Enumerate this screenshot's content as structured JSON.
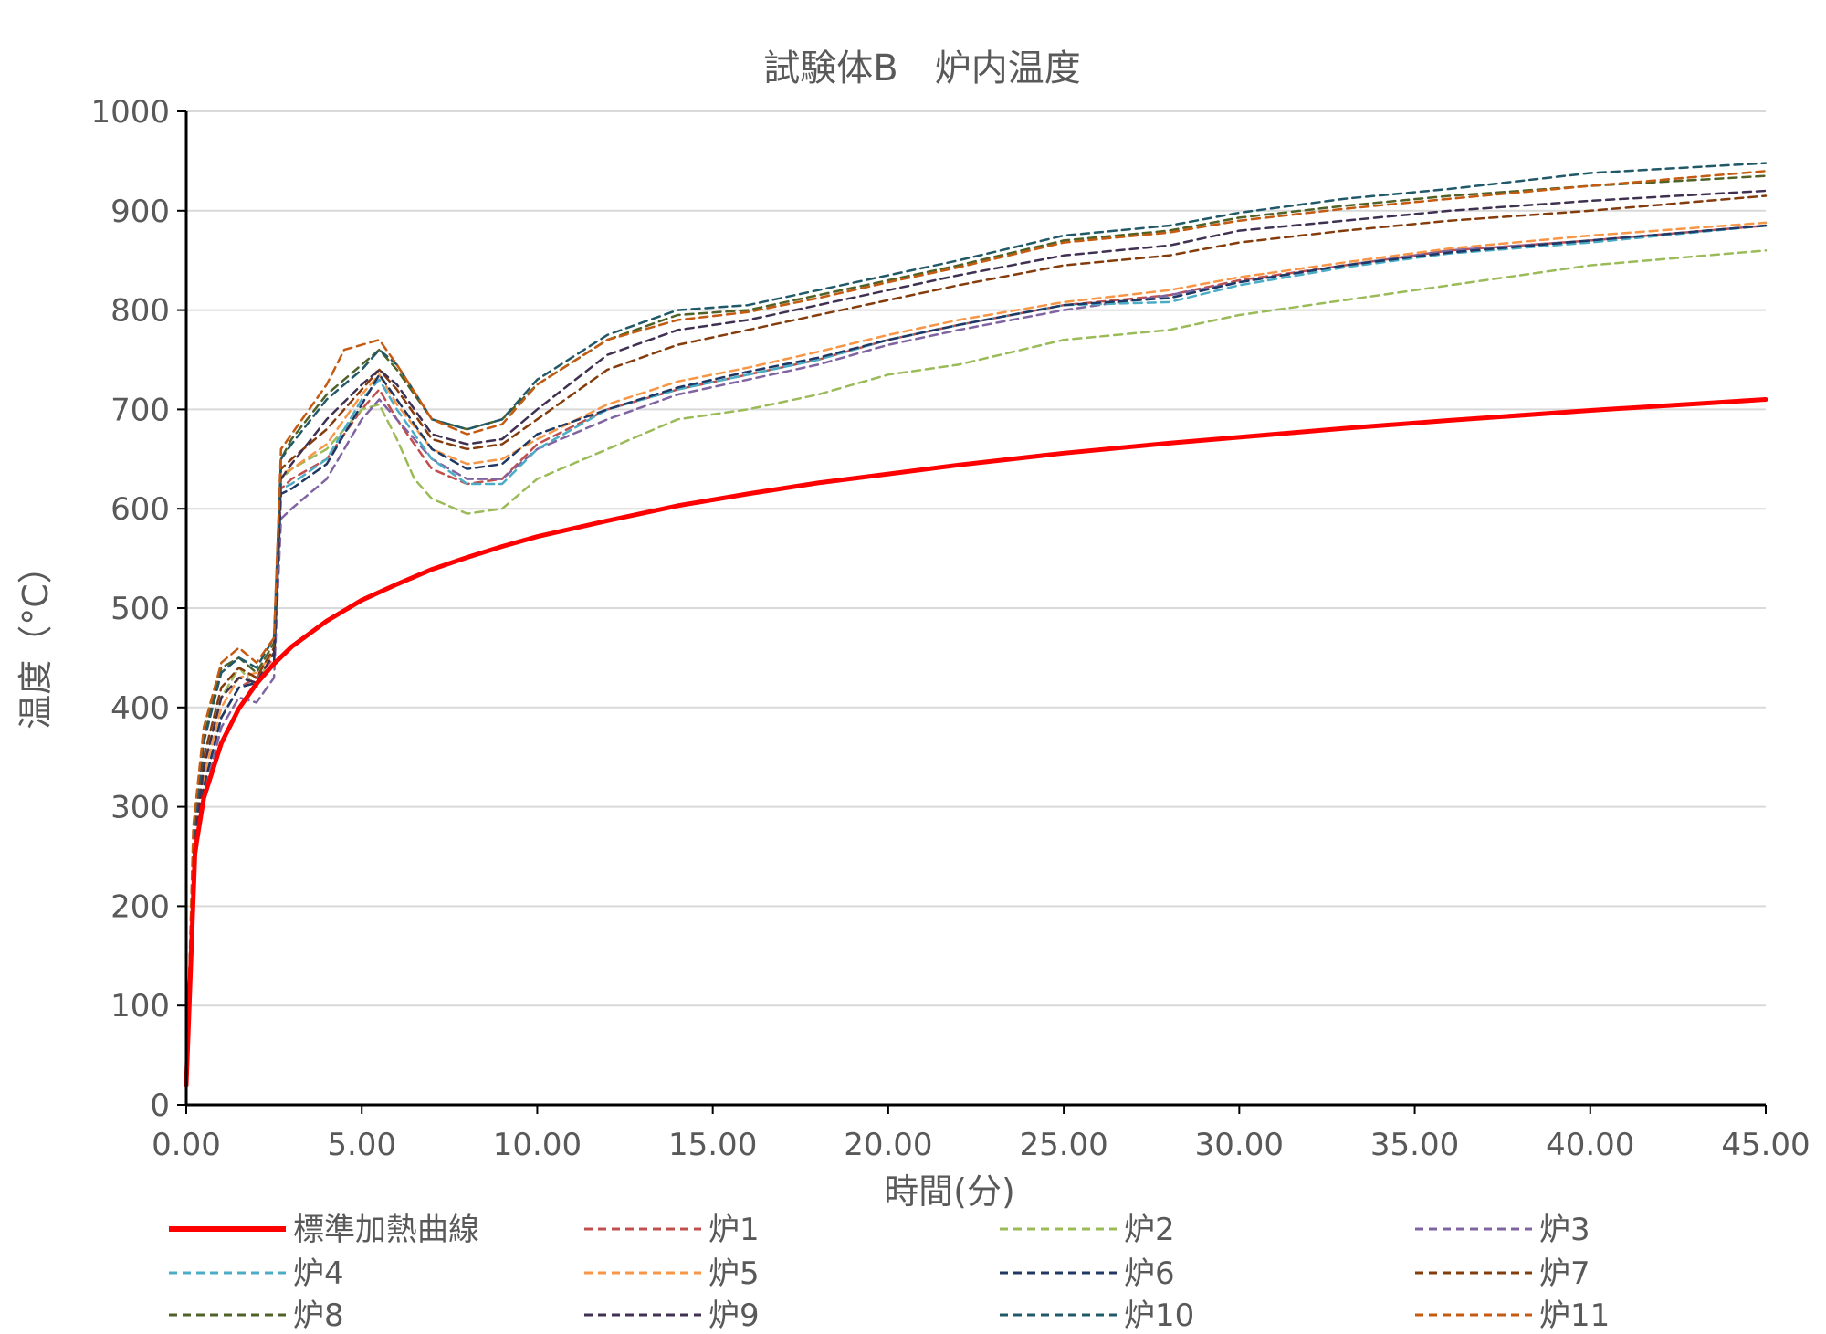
{
  "chart_data": {
    "type": "line",
    "title": "試験体B　炉内温度",
    "xlabel": "時間(分)",
    "ylabel": "温度（°C）",
    "xlim": [
      0,
      45
    ],
    "ylim": [
      0,
      1000
    ],
    "xticks": [
      "0.00",
      "5.00",
      "10.00",
      "15.00",
      "20.00",
      "25.00",
      "30.00",
      "35.00",
      "40.00",
      "45.00"
    ],
    "yticks": [
      "0",
      "100",
      "200",
      "300",
      "400",
      "500",
      "600",
      "700",
      "800",
      "900",
      "1000"
    ],
    "grid": "horizontal",
    "legend_position": "bottom",
    "series": [
      {
        "name": "標準加熱曲線",
        "color": "#ff0000",
        "style": "solid",
        "x": [
          0,
          0.25,
          0.5,
          1,
          1.5,
          2,
          2.5,
          3,
          4,
          5,
          6,
          7,
          8,
          9,
          10,
          12,
          14,
          16,
          18,
          20,
          22,
          25,
          28,
          30,
          33,
          36,
          40,
          45
        ],
        "y": [
          20,
          255,
          309,
          364,
          399,
          424,
          444,
          461,
          487,
          508,
          524,
          539,
          551,
          562,
          572,
          588,
          603,
          615,
          626,
          635,
          644,
          656,
          666,
          672,
          681,
          689,
          699,
          710
        ]
      },
      {
        "name": "炉1",
        "color": "#c0504d",
        "style": "dashed",
        "x": [
          0,
          0.2,
          0.5,
          1,
          1.5,
          2,
          2.5,
          2.7,
          3,
          4,
          5,
          5.5,
          6,
          7,
          8,
          9,
          10,
          12,
          14,
          16,
          18,
          20,
          22,
          25,
          28,
          30,
          33,
          36,
          40,
          45
        ],
        "y": [
          20,
          240,
          320,
          390,
          420,
          430,
          450,
          620,
          630,
          650,
          700,
          720,
          690,
          640,
          625,
          630,
          665,
          700,
          720,
          735,
          750,
          770,
          785,
          805,
          815,
          830,
          845,
          860,
          870,
          885
        ]
      },
      {
        "name": "炉2",
        "color": "#9bbb59",
        "style": "dashed",
        "x": [
          0,
          0.2,
          0.5,
          1,
          1.5,
          2,
          2.5,
          2.7,
          3,
          4,
          5,
          5.5,
          6,
          6.5,
          7,
          8,
          9,
          10,
          12,
          14,
          16,
          18,
          20,
          22,
          25,
          28,
          30,
          33,
          36,
          40,
          45
        ],
        "y": [
          20,
          260,
          340,
          410,
          440,
          420,
          460,
          630,
          640,
          660,
          700,
          705,
          670,
          630,
          610,
          595,
          600,
          630,
          660,
          690,
          700,
          715,
          735,
          745,
          770,
          780,
          795,
          810,
          825,
          845,
          860
        ]
      },
      {
        "name": "炉3",
        "color": "#8064a2",
        "style": "dashed",
        "x": [
          0,
          0.2,
          0.5,
          1,
          1.5,
          2,
          2.5,
          2.7,
          3,
          4,
          5,
          5.5,
          6,
          7,
          8,
          9,
          10,
          12,
          14,
          16,
          18,
          20,
          22,
          25,
          28,
          30,
          33,
          36,
          40,
          45
        ],
        "y": [
          20,
          230,
          310,
          380,
          410,
          405,
          430,
          590,
          600,
          630,
          690,
          710,
          690,
          650,
          630,
          630,
          660,
          690,
          715,
          730,
          745,
          765,
          780,
          800,
          815,
          828,
          845,
          860,
          870,
          885
        ]
      },
      {
        "name": "炉4",
        "color": "#4bacc6",
        "style": "dashed",
        "x": [
          0,
          0.2,
          0.5,
          1,
          1.5,
          2,
          2.5,
          2.7,
          3,
          4,
          5,
          5.5,
          6,
          7,
          8,
          9,
          10,
          12,
          14,
          16,
          18,
          20,
          22,
          25,
          28,
          30,
          33,
          36,
          40,
          45
        ],
        "y": [
          20,
          240,
          320,
          390,
          420,
          425,
          445,
          620,
          625,
          650,
          710,
          730,
          700,
          650,
          625,
          625,
          660,
          700,
          720,
          735,
          750,
          770,
          785,
          805,
          808,
          825,
          843,
          857,
          868,
          885
        ]
      },
      {
        "name": "炉5",
        "color": "#f79646",
        "style": "dashed",
        "x": [
          0,
          0.2,
          0.5,
          1,
          1.5,
          2,
          2.5,
          2.7,
          3,
          4,
          5,
          5.5,
          6,
          7,
          8,
          9,
          10,
          12,
          14,
          16,
          18,
          20,
          22,
          25,
          28,
          30,
          33,
          36,
          40,
          45
        ],
        "y": [
          20,
          250,
          330,
          400,
          430,
          435,
          455,
          635,
          640,
          665,
          715,
          735,
          705,
          660,
          645,
          650,
          670,
          705,
          728,
          742,
          758,
          775,
          790,
          808,
          820,
          833,
          848,
          862,
          875,
          888
        ]
      },
      {
        "name": "炉6",
        "color": "#1f3864",
        "style": "dashed",
        "x": [
          0,
          0.2,
          0.5,
          1,
          1.5,
          2,
          2.5,
          2.7,
          3,
          4,
          5,
          5.5,
          6,
          7,
          8,
          9,
          10,
          12,
          14,
          16,
          18,
          20,
          22,
          25,
          28,
          30,
          33,
          36,
          40,
          45
        ],
        "y": [
          20,
          240,
          320,
          390,
          420,
          425,
          445,
          615,
          620,
          645,
          705,
          735,
          710,
          660,
          640,
          645,
          675,
          700,
          722,
          738,
          752,
          770,
          785,
          805,
          812,
          828,
          845,
          858,
          870,
          885
        ]
      },
      {
        "name": "炉7",
        "color": "#843c0c",
        "style": "dashed",
        "x": [
          0,
          0.2,
          0.5,
          1,
          1.5,
          2,
          2.5,
          2.7,
          3,
          4,
          5,
          5.5,
          6,
          7,
          8,
          9,
          10,
          12,
          14,
          16,
          18,
          20,
          22,
          25,
          28,
          30,
          33,
          36,
          40,
          45
        ],
        "y": [
          20,
          260,
          350,
          420,
          440,
          430,
          460,
          640,
          650,
          680,
          720,
          740,
          720,
          670,
          660,
          665,
          690,
          740,
          765,
          780,
          795,
          810,
          825,
          845,
          855,
          868,
          880,
          890,
          900,
          915
        ]
      },
      {
        "name": "炉8",
        "color": "#4f6228",
        "style": "dashed",
        "x": [
          0,
          0.2,
          0.5,
          1,
          1.5,
          2,
          2.5,
          2.7,
          3,
          4,
          5,
          5.5,
          6,
          7,
          8,
          9,
          10,
          12,
          14,
          16,
          18,
          20,
          22,
          25,
          28,
          30,
          33,
          36,
          40,
          45
        ],
        "y": [
          20,
          270,
          370,
          440,
          450,
          435,
          465,
          650,
          670,
          715,
          745,
          760,
          740,
          690,
          680,
          690,
          725,
          770,
          795,
          800,
          815,
          830,
          845,
          870,
          880,
          893,
          905,
          915,
          925,
          935
        ]
      },
      {
        "name": "炉9",
        "color": "#403152",
        "style": "dashed",
        "x": [
          0,
          0.2,
          0.5,
          1,
          1.5,
          2,
          2.5,
          2.7,
          3,
          4,
          5,
          5.5,
          6,
          7,
          8,
          9,
          10,
          12,
          14,
          16,
          18,
          20,
          22,
          25,
          28,
          30,
          33,
          36,
          40,
          45
        ],
        "y": [
          20,
          250,
          340,
          410,
          430,
          425,
          455,
          630,
          645,
          690,
          725,
          740,
          725,
          675,
          665,
          670,
          700,
          755,
          780,
          790,
          805,
          820,
          835,
          855,
          865,
          880,
          890,
          900,
          910,
          920
        ]
      },
      {
        "name": "炉10",
        "color": "#215968",
        "style": "dashed",
        "x": [
          0,
          0.2,
          0.5,
          1,
          1.5,
          2,
          2.5,
          2.7,
          3,
          4,
          5,
          5.5,
          6,
          7,
          8,
          9,
          10,
          12,
          14,
          16,
          18,
          20,
          22,
          25,
          28,
          30,
          33,
          36,
          40,
          45
        ],
        "y": [
          20,
          270,
          365,
          435,
          450,
          440,
          470,
          650,
          665,
          710,
          740,
          760,
          745,
          690,
          680,
          690,
          730,
          775,
          800,
          805,
          820,
          835,
          850,
          875,
          885,
          898,
          912,
          922,
          938,
          948
        ]
      },
      {
        "name": "炉11",
        "color": "#c55a11",
        "style": "dashed",
        "x": [
          0,
          0.2,
          0.5,
          1,
          1.5,
          2,
          2.5,
          2.7,
          3,
          4,
          4.5,
          5,
          5.5,
          6,
          7,
          8,
          9,
          10,
          12,
          14,
          16,
          18,
          20,
          22,
          25,
          28,
          30,
          33,
          36,
          40,
          45
        ],
        "y": [
          20,
          280,
          380,
          445,
          460,
          445,
          470,
          660,
          675,
          725,
          760,
          765,
          770,
          745,
          690,
          675,
          685,
          725,
          770,
          790,
          798,
          812,
          828,
          843,
          868,
          878,
          890,
          902,
          912,
          925,
          940
        ]
      }
    ]
  }
}
